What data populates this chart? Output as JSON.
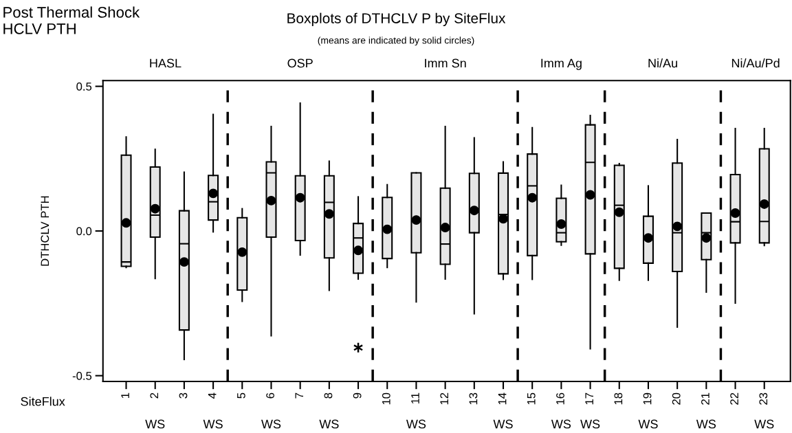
{
  "chart_data": {
    "type": "box",
    "title": "Boxplots of DTHCLV P by SiteFlux",
    "subtitle": "(means are indicated by solid circles)",
    "xlabel": "SiteFlux",
    "ylabel": "DTHCLV PTH",
    "x": [
      1,
      2,
      3,
      4,
      5,
      6,
      7,
      8,
      9,
      10,
      11,
      12,
      13,
      14,
      15,
      16,
      17,
      18,
      19,
      20,
      21,
      22,
      23
    ],
    "xlim": [
      0.2,
      23.9
    ],
    "xticks": [
      1,
      2,
      3,
      4,
      5,
      6,
      7,
      8,
      9,
      10,
      11,
      12,
      13,
      14,
      15,
      16,
      17,
      18,
      19,
      20,
      21,
      22,
      23
    ],
    "ylim": [
      -0.52,
      0.52
    ],
    "yticks": [
      {
        "value": -0.5,
        "label": "-0.5"
      },
      {
        "value": 0.0,
        "label": "0.0"
      },
      {
        "value": 0.5,
        "label": "0.5"
      }
    ],
    "color": "#e6e6e6",
    "grid": false,
    "marker": "circle",
    "boxes": [
      {
        "low": -0.126,
        "q1": -0.122,
        "median": -0.107,
        "q3": 0.262,
        "high": 0.325,
        "mean": 0.028
      },
      {
        "low": -0.164,
        "q1": -0.021,
        "median": 0.055,
        "q3": 0.221,
        "high": 0.282,
        "mean": 0.077
      },
      {
        "low": -0.444,
        "q1": -0.342,
        "median": -0.044,
        "q3": 0.07,
        "high": 0.203,
        "mean": -0.107
      },
      {
        "low": -0.003,
        "q1": 0.038,
        "median": 0.101,
        "q3": 0.192,
        "high": 0.403,
        "mean": 0.13
      },
      {
        "low": -0.243,
        "q1": -0.204,
        "median": -0.075,
        "q3": 0.046,
        "high": 0.077,
        "mean": -0.073
      },
      {
        "low": -0.362,
        "q1": -0.021,
        "median": 0.201,
        "q3": 0.239,
        "high": 0.361,
        "mean": 0.105
      },
      {
        "low": -0.083,
        "q1": -0.033,
        "median": 0.115,
        "q3": 0.191,
        "high": 0.442,
        "mean": 0.115
      },
      {
        "low": -0.205,
        "q1": -0.093,
        "median": 0.099,
        "q3": 0.191,
        "high": 0.241,
        "mean": 0.059
      },
      {
        "low": -0.166,
        "q1": -0.146,
        "median": -0.024,
        "q3": 0.026,
        "high": 0.118,
        "mean": -0.067,
        "outliers": [
          -0.403
        ]
      },
      {
        "low": -0.126,
        "q1": -0.095,
        "median": 0.006,
        "q3": 0.116,
        "high": 0.16,
        "mean": 0.006
      },
      {
        "low": -0.245,
        "q1": -0.075,
        "median": 0.038,
        "q3": 0.201,
        "high": 0.201,
        "mean": 0.038
      },
      {
        "low": -0.166,
        "q1": -0.115,
        "median": -0.045,
        "q3": 0.148,
        "high": 0.361,
        "mean": 0.012
      },
      {
        "low": -0.286,
        "q1": -0.006,
        "median": 0.071,
        "q3": 0.199,
        "high": 0.322,
        "mean": 0.071
      },
      {
        "low": -0.167,
        "q1": -0.148,
        "median": 0.057,
        "q3": 0.2,
        "high": 0.239,
        "mean": 0.042
      },
      {
        "low": -0.167,
        "q1": -0.085,
        "median": 0.156,
        "q3": 0.266,
        "high": 0.357,
        "mean": 0.115
      },
      {
        "low": -0.049,
        "q1": -0.037,
        "median": -0.006,
        "q3": 0.113,
        "high": 0.158,
        "mean": 0.024
      },
      {
        "low": -0.407,
        "q1": -0.079,
        "median": 0.237,
        "q3": 0.367,
        "high": 0.399,
        "mean": 0.125
      },
      {
        "low": -0.17,
        "q1": -0.129,
        "median": 0.089,
        "q3": 0.227,
        "high": 0.233,
        "mean": 0.065
      },
      {
        "low": -0.17,
        "q1": -0.111,
        "median": -0.024,
        "q3": 0.051,
        "high": 0.156,
        "mean": -0.024
      },
      {
        "low": -0.332,
        "q1": -0.14,
        "median": -0.006,
        "q3": 0.235,
        "high": 0.316,
        "mean": 0.016
      },
      {
        "low": -0.211,
        "q1": -0.099,
        "median": -0.006,
        "q3": 0.062,
        "high": 0.062,
        "mean": -0.024
      },
      {
        "low": -0.249,
        "q1": -0.041,
        "median": 0.032,
        "q3": 0.195,
        "high": 0.354,
        "mean": 0.062
      },
      {
        "low": -0.05,
        "q1": -0.041,
        "median": 0.033,
        "q3": 0.284,
        "high": 0.354,
        "mean": 0.093
      }
    ],
    "ref_lines": [
      {
        "axis": "x",
        "value": 4.5,
        "color": "#000000",
        "line_style": "dashed"
      },
      {
        "axis": "x",
        "value": 9.5,
        "color": "#000000",
        "line_style": "dashed"
      },
      {
        "axis": "x",
        "value": 14.5,
        "color": "#000000",
        "line_style": "dashed"
      },
      {
        "axis": "x",
        "value": 17.5,
        "color": "#000000",
        "line_style": "dashed"
      },
      {
        "axis": "x",
        "value": 21.5,
        "color": "#000000",
        "line_style": "dashed"
      }
    ],
    "annotations": [
      "Post Thermal Shock\nHCLV PTH",
      "HASL",
      "OSP",
      "Imm Sn",
      "Imm Ag",
      "Ni/Au",
      "Ni/Au/Pd",
      "WS",
      "WS",
      "WS",
      "WS",
      "WS",
      "WS",
      "WS",
      "WS",
      "WS",
      "WS",
      "WS"
    ]
  }
}
